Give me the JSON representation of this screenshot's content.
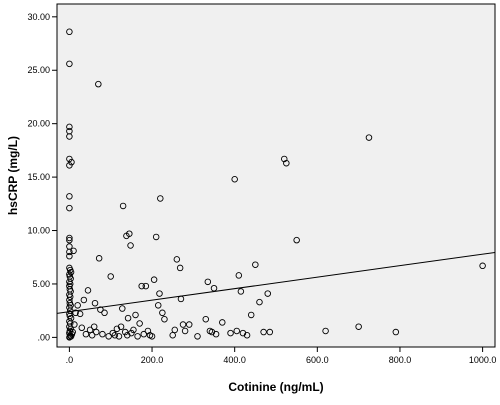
{
  "chart_data": {
    "type": "scatter",
    "title": "",
    "xlabel": "Cotinine (ng/mL)",
    "ylabel": "hsCRP (mg/L)",
    "xlim": [
      -30,
      1030
    ],
    "ylim": [
      -0.9,
      31.2
    ],
    "x_ticks": [
      0,
      200,
      400,
      600,
      800,
      1000
    ],
    "x_tick_labels": [
      ".0",
      "200.0",
      "400.0",
      "600.0",
      "800.0",
      "1000.0"
    ],
    "y_ticks": [
      0,
      5,
      10,
      15,
      20,
      25,
      30
    ],
    "y_tick_labels": [
      ".00",
      "5.00",
      "10.00",
      "15.00",
      "20.00",
      "25.00",
      "30.00"
    ],
    "grid": false,
    "plot_background": "#f0f0f0",
    "marker": "open-circle",
    "marker_color": "#000000",
    "fit_line": {
      "type": "linear",
      "x": [
        -30,
        1030
      ],
      "y": [
        2.25,
        7.95
      ]
    },
    "points": [
      [
        0,
        28.6
      ],
      [
        0,
        25.6
      ],
      [
        0,
        19.7
      ],
      [
        0,
        19.3
      ],
      [
        0,
        18.8
      ],
      [
        0,
        16.7
      ],
      [
        0,
        16.1
      ],
      [
        5,
        16.4
      ],
      [
        0,
        13.2
      ],
      [
        0,
        12.1
      ],
      [
        0,
        9.3
      ],
      [
        0,
        9.1
      ],
      [
        0,
        8.5
      ],
      [
        0,
        8.0
      ],
      [
        10,
        8.1
      ],
      [
        0,
        7.6
      ],
      [
        0,
        6.5
      ],
      [
        2,
        6.3
      ],
      [
        4,
        6.1
      ],
      [
        0,
        5.9
      ],
      [
        1,
        5.7
      ],
      [
        3,
        5.5
      ],
      [
        0,
        5.2
      ],
      [
        2,
        5.0
      ],
      [
        0,
        4.8
      ],
      [
        1,
        4.5
      ],
      [
        3,
        4.3
      ],
      [
        0,
        4.0
      ],
      [
        2,
        3.8
      ],
      [
        0,
        3.5
      ],
      [
        1,
        3.2
      ],
      [
        3,
        3.0
      ],
      [
        0,
        2.8
      ],
      [
        2,
        2.5
      ],
      [
        0,
        2.2
      ],
      [
        1,
        2.0
      ],
      [
        4,
        1.8
      ],
      [
        0,
        1.5
      ],
      [
        2,
        1.3
      ],
      [
        0,
        1.0
      ],
      [
        3,
        0.8
      ],
      [
        1,
        0.6
      ],
      [
        0,
        0.4
      ],
      [
        2,
        0.2
      ],
      [
        4,
        0.1
      ],
      [
        0,
        0.0
      ],
      [
        1,
        0.05
      ],
      [
        6,
        0.3
      ],
      [
        8,
        0.5
      ],
      [
        12,
        1.2
      ],
      [
        15,
        2.3
      ],
      [
        20,
        3.0
      ],
      [
        26,
        2.2
      ],
      [
        30,
        0.9
      ],
      [
        35,
        3.5
      ],
      [
        40,
        0.3
      ],
      [
        45,
        4.4
      ],
      [
        50,
        0.7
      ],
      [
        55,
        0.2
      ],
      [
        60,
        1.0
      ],
      [
        62,
        3.2
      ],
      [
        65,
        0.5
      ],
      [
        70,
        23.7
      ],
      [
        72,
        7.4
      ],
      [
        75,
        2.6
      ],
      [
        80,
        0.3
      ],
      [
        85,
        2.3
      ],
      [
        95,
        0.1
      ],
      [
        100,
        5.7
      ],
      [
        105,
        0.4
      ],
      [
        110,
        0.2
      ],
      [
        115,
        0.8
      ],
      [
        120,
        0.1
      ],
      [
        125,
        1.0
      ],
      [
        128,
        2.7
      ],
      [
        130,
        12.3
      ],
      [
        135,
        0.5
      ],
      [
        138,
        9.5
      ],
      [
        140,
        0.2
      ],
      [
        142,
        1.8
      ],
      [
        145,
        9.7
      ],
      [
        148,
        8.6
      ],
      [
        150,
        0.4
      ],
      [
        155,
        0.7
      ],
      [
        160,
        2.1
      ],
      [
        165,
        0.1
      ],
      [
        170,
        1.3
      ],
      [
        175,
        4.8
      ],
      [
        180,
        0.3
      ],
      [
        185,
        4.8
      ],
      [
        190,
        0.6
      ],
      [
        195,
        0.2
      ],
      [
        200,
        0.1
      ],
      [
        205,
        5.4
      ],
      [
        210,
        9.4
      ],
      [
        215,
        3.0
      ],
      [
        218,
        4.1
      ],
      [
        220,
        13.0
      ],
      [
        225,
        2.3
      ],
      [
        230,
        1.7
      ],
      [
        250,
        0.2
      ],
      [
        255,
        0.7
      ],
      [
        260,
        7.3
      ],
      [
        268,
        6.5
      ],
      [
        270,
        3.6
      ],
      [
        275,
        1.2
      ],
      [
        280,
        0.6
      ],
      [
        290,
        1.2
      ],
      [
        310,
        0.1
      ],
      [
        330,
        1.7
      ],
      [
        335,
        5.2
      ],
      [
        340,
        0.6
      ],
      [
        345,
        0.5
      ],
      [
        350,
        4.6
      ],
      [
        355,
        0.3
      ],
      [
        370,
        1.4
      ],
      [
        390,
        0.4
      ],
      [
        400,
        14.8
      ],
      [
        405,
        0.6
      ],
      [
        410,
        5.8
      ],
      [
        415,
        4.3
      ],
      [
        420,
        0.4
      ],
      [
        430,
        0.2
      ],
      [
        440,
        2.1
      ],
      [
        450,
        6.8
      ],
      [
        460,
        3.3
      ],
      [
        470,
        0.5
      ],
      [
        480,
        4.1
      ],
      [
        485,
        0.5
      ],
      [
        520,
        16.7
      ],
      [
        525,
        16.3
      ],
      [
        550,
        9.1
      ],
      [
        620,
        0.6
      ],
      [
        700,
        1.0
      ],
      [
        725,
        18.7
      ],
      [
        790,
        0.5
      ],
      [
        1000,
        6.7
      ]
    ]
  }
}
